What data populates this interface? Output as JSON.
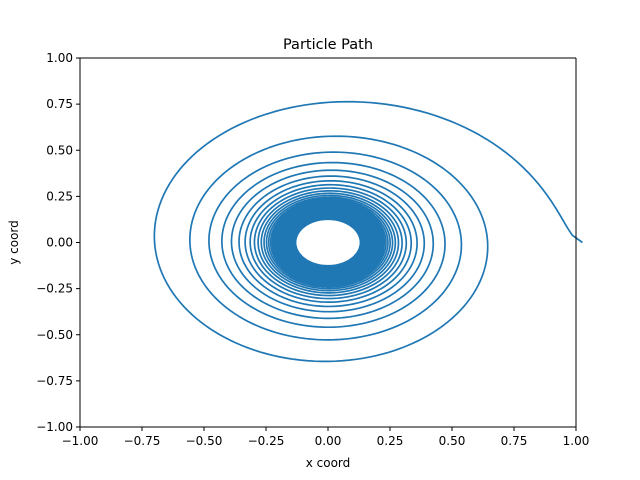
{
  "chart_data": {
    "type": "line",
    "title": "Particle Path",
    "xlabel": "x coord",
    "ylabel": "y coord",
    "xlim": [
      -1.0,
      1.0
    ],
    "ylim": [
      -1.0,
      1.0
    ],
    "xticks": [
      -1.0,
      -0.75,
      -0.5,
      -0.25,
      0.0,
      0.25,
      0.5,
      0.75,
      1.0
    ],
    "yticks": [
      -1.0,
      -0.75,
      -0.5,
      -0.25,
      0.0,
      0.25,
      0.5,
      0.75,
      1.0
    ],
    "xtick_labels": [
      "−1.00",
      "−0.75",
      "−0.50",
      "−0.25",
      "0.00",
      "0.25",
      "0.50",
      "0.75",
      "1.00"
    ],
    "ytick_labels": [
      "−1.00",
      "−0.75",
      "−0.50",
      "−0.25",
      "0.00",
      "0.25",
      "0.50",
      "0.75",
      "1.00"
    ],
    "grid": false,
    "series": [
      {
        "color": "#1f77b4",
        "shape": "inward spiral",
        "start": [
          1.0,
          0.0
        ],
        "samples": [
          [
            1.0,
            0.0
          ],
          [
            0.05,
            0.965
          ],
          [
            -0.82,
            0.09
          ],
          [
            0.0,
            -0.73
          ],
          [
            0.73,
            0.02
          ],
          [
            0.0,
            0.73
          ],
          [
            -0.65,
            0.05
          ],
          [
            0.0,
            -0.58
          ],
          [
            0.6,
            0.02
          ],
          [
            0.0,
            0.6
          ],
          [
            -0.47,
            0.05
          ],
          [
            0.0,
            -0.49
          ],
          [
            0.45,
            0.02
          ],
          [
            0.0,
            0.52
          ],
          [
            -0.37,
            0.04
          ],
          [
            0.0,
            -0.42
          ],
          [
            0.38,
            0.01
          ],
          [
            0.0,
            0.44
          ],
          [
            -0.3,
            0.03
          ],
          [
            0.0,
            -0.36
          ],
          [
            0.13,
            0.0
          ]
        ],
        "inner_hole_radius": 0.13
      }
    ]
  }
}
